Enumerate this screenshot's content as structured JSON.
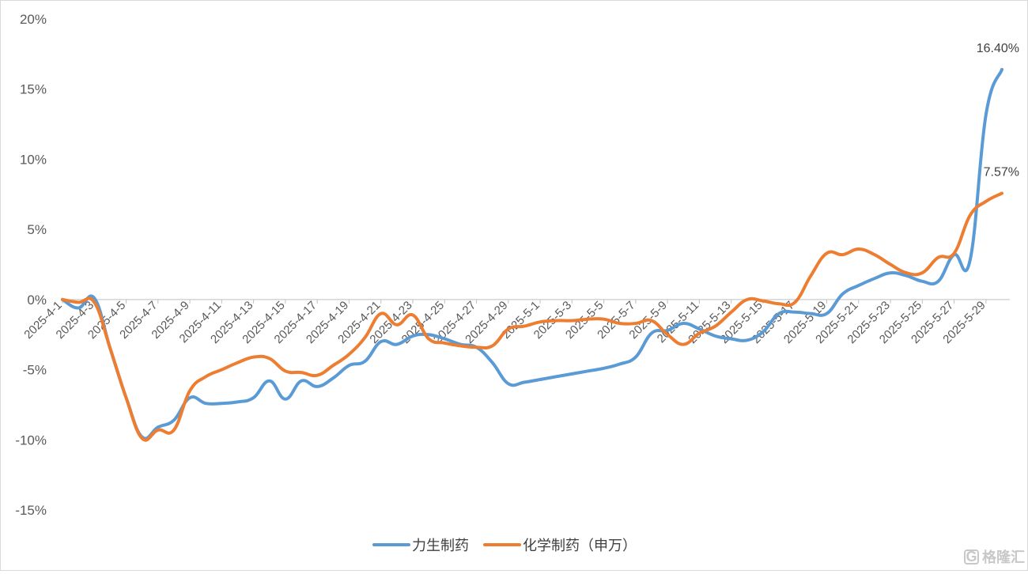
{
  "chart_data": {
    "type": "line",
    "ylim": [
      -15,
      20
    ],
    "yticks": [
      20,
      15,
      10,
      5,
      0,
      -5,
      -10,
      -15
    ],
    "ytick_labels": [
      "20%",
      "15%",
      "10%",
      "5%",
      "0%",
      "-5%",
      "-10%",
      "-15%"
    ],
    "grid": false,
    "legend_position": "bottom",
    "x": [
      "2025-4-1",
      "2025-4-2",
      "2025-4-3",
      "2025-4-4",
      "2025-4-5",
      "2025-4-6",
      "2025-4-7",
      "2025-4-8",
      "2025-4-9",
      "2025-4-10",
      "2025-4-11",
      "2025-4-12",
      "2025-4-13",
      "2025-4-14",
      "2025-4-15",
      "2025-4-16",
      "2025-4-17",
      "2025-4-18",
      "2025-4-19",
      "2025-4-20",
      "2025-4-21",
      "2025-4-22",
      "2025-4-23",
      "2025-4-24",
      "2025-4-25",
      "2025-4-26",
      "2025-4-27",
      "2025-4-28",
      "2025-4-29",
      "2025-4-30",
      "2025-5-1",
      "2025-5-2",
      "2025-5-3",
      "2025-5-4",
      "2025-5-5",
      "2025-5-6",
      "2025-5-7",
      "2025-5-8",
      "2025-5-9",
      "2025-5-10",
      "2025-5-11",
      "2025-5-12",
      "2025-5-13",
      "2025-5-14",
      "2025-5-15",
      "2025-5-16",
      "2025-5-17",
      "2025-5-18",
      "2025-5-19",
      "2025-5-20",
      "2025-5-21",
      "2025-5-22",
      "2025-5-23",
      "2025-5-24",
      "2025-5-25",
      "2025-5-26",
      "2025-5-27",
      "2025-5-28",
      "2025-5-29",
      "2025-5-30"
    ],
    "x_tick_labels": [
      "2025-4-1",
      "2025-4-3",
      "2025-4-5",
      "2025-4-7",
      "2025-4-9",
      "2025-4-11",
      "2025-4-13",
      "2025-4-15",
      "2025-4-17",
      "2025-4-19",
      "2025-4-21",
      "2025-4-23",
      "2025-4-25",
      "2025-4-27",
      "2025-4-29",
      "2025-5-1",
      "2025-5-3",
      "2025-5-5",
      "2025-5-7",
      "2025-5-9",
      "2025-5-11",
      "2025-5-13",
      "2025-5-15",
      "2025-5-17",
      "2025-5-19",
      "2025-5-21",
      "2025-5-23",
      "2025-5-25",
      "2025-5-27",
      "2025-5-29"
    ],
    "series": [
      {
        "name": "力生制药",
        "color": "#5b9bd5",
        "values": [
          0.0,
          -0.6,
          0.1,
          -3.5,
          -7.0,
          -9.8,
          -9.1,
          -8.6,
          -7.0,
          -7.4,
          -7.4,
          -7.3,
          -7.0,
          -5.8,
          -7.1,
          -5.8,
          -6.2,
          -5.6,
          -4.7,
          -4.4,
          -3.0,
          -3.2,
          -2.6,
          -2.5,
          -2.8,
          -3.2,
          -3.4,
          -4.5,
          -6.0,
          -5.9,
          -5.7,
          -5.5,
          -5.3,
          -5.1,
          -4.9,
          -4.6,
          -4.1,
          -2.4,
          -2.2,
          -1.7,
          -2.1,
          -2.6,
          -2.8,
          -2.9,
          -2.3,
          -1.0,
          -0.9,
          -1.0,
          -1.0,
          0.4,
          1.0,
          1.5,
          1.9,
          1.7,
          1.3,
          1.3,
          3.2,
          2.8,
          13.2,
          16.4
        ],
        "end_label": "16.40%"
      },
      {
        "name": "化学制药（申万）",
        "color": "#ed7d31",
        "values": [
          0.0,
          -0.2,
          -0.2,
          -3.5,
          -7.0,
          -9.9,
          -9.3,
          -9.3,
          -6.5,
          -5.5,
          -5.0,
          -4.5,
          -4.1,
          -4.2,
          -5.1,
          -5.2,
          -5.4,
          -4.7,
          -3.9,
          -2.7,
          -1.0,
          -1.8,
          -1.1,
          -2.8,
          -3.1,
          -3.3,
          -3.4,
          -3.3,
          -2.1,
          -1.9,
          -1.6,
          -1.5,
          -1.5,
          -1.4,
          -1.4,
          -1.7,
          -1.7,
          -1.5,
          -2.5,
          -3.2,
          -2.4,
          -1.9,
          -0.9,
          0.0,
          -0.1,
          -0.3,
          -0.2,
          1.7,
          3.3,
          3.2,
          3.6,
          3.2,
          2.5,
          1.9,
          1.9,
          3.0,
          3.3,
          6.0,
          7.0,
          7.57
        ],
        "end_label": "7.57%"
      }
    ]
  },
  "watermark": {
    "glyph": "G",
    "text": "格隆汇"
  }
}
